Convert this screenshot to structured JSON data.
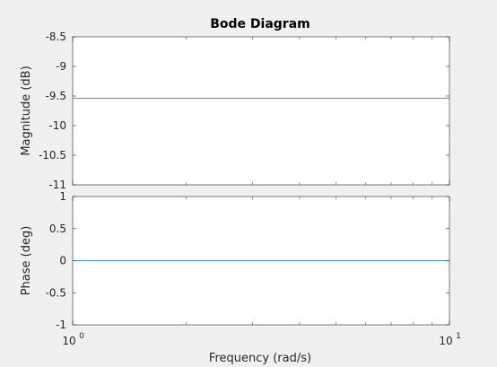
{
  "chart_data": {
    "type": "line",
    "title": "Bode Diagram",
    "xlabel": "Frequency  (rad/s)",
    "x_scale": "log",
    "xlim": [
      1,
      10
    ],
    "x_ticks": [
      {
        "base": "10",
        "exp": "0"
      },
      {
        "base": "10",
        "exp": "1"
      }
    ],
    "colors": {
      "background": "#f0f0f0",
      "axes_bg": "#ffffff",
      "axis_line": "#262626",
      "line": "#0072bd"
    },
    "panels": [
      {
        "name": "magnitude",
        "ylabel": "Magnitude (dB)",
        "ylim": [
          -11,
          -8.5
        ],
        "y_ticks": [
          -8.5,
          -9,
          -9.5,
          -10,
          -10.5,
          -11
        ],
        "y_tick_labels": [
          "-8.5",
          "-9",
          "-9.5",
          "-10",
          "-10.5",
          "-11"
        ],
        "series": [
          {
            "x": [
              1,
              10
            ],
            "y": [
              -9.54,
              -9.54
            ]
          }
        ]
      },
      {
        "name": "phase",
        "ylabel": "Phase (deg)",
        "ylim": [
          -1,
          1
        ],
        "y_ticks": [
          1,
          0.5,
          0,
          -0.5,
          -1
        ],
        "y_tick_labels": [
          "1",
          "0.5",
          "0",
          "-0.5",
          "-1"
        ],
        "series": [
          {
            "x": [
              1,
              10
            ],
            "y": [
              0,
              0
            ]
          }
        ]
      }
    ]
  }
}
